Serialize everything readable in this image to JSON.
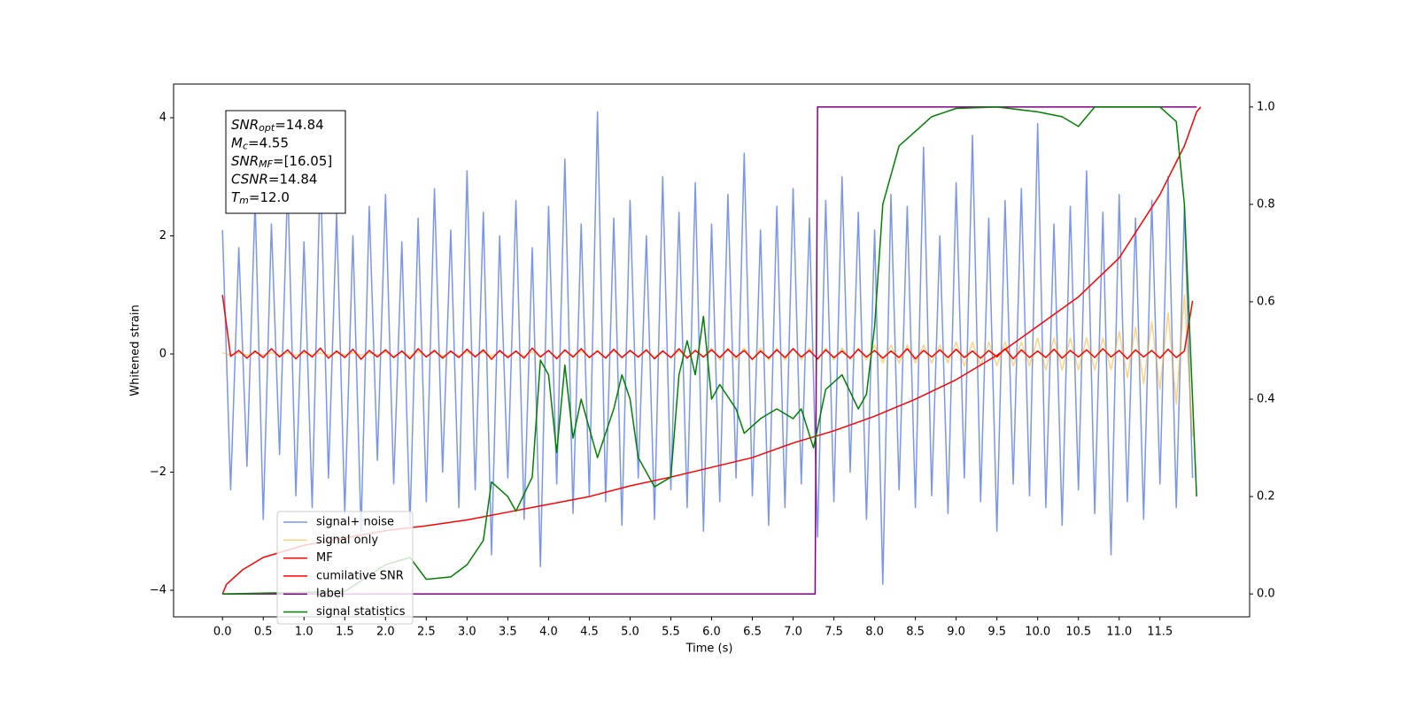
{
  "chart_data": {
    "type": "line",
    "xlabel": "Time (s)",
    "ylabel": "Whitened strain",
    "xlim": [
      -0.6,
      12.6
    ],
    "ylim": [
      -4.45,
      4.57
    ],
    "y2lim": [
      -0.047,
      1.047
    ],
    "xticks": [
      {
        "value": 0,
        "label": "0.0"
      },
      0.5,
      {
        "value": 1,
        "label": "1.0"
      },
      1.5,
      {
        "value": 2,
        "label": "2.0"
      },
      2.5,
      {
        "value": 3,
        "label": "3.0"
      },
      3.5,
      {
        "value": 4,
        "label": "4.0"
      },
      4.5,
      {
        "value": 5,
        "label": "5.0"
      },
      5.5,
      {
        "value": 6,
        "label": "6.0"
      },
      6.5,
      {
        "value": 7,
        "label": "7.0"
      },
      7.5,
      {
        "value": 8,
        "label": "8.0"
      },
      8.5,
      {
        "value": 9,
        "label": "9.0"
      },
      9.5,
      {
        "value": 10,
        "label": "10.0"
      },
      10.5,
      {
        "value": 11,
        "label": "11.0"
      },
      11.5
    ],
    "yticks": [
      {
        "value": -4,
        "label": "−4"
      },
      {
        "value": -2,
        "label": "−2"
      },
      0,
      2,
      4
    ],
    "y2ticks": [
      {
        "value": 0,
        "label": "0.0"
      },
      0.2,
      0.4,
      0.6,
      0.8,
      {
        "value": 1,
        "label": "1.0"
      }
    ],
    "legend_loc": "lower left",
    "annotation_lines": [
      {
        "symbol": "SNR",
        "subscript": "opt",
        "text": "=14.84"
      },
      {
        "symbol": "M",
        "subscript": "c",
        "text": "=4.55"
      },
      {
        "symbol": "SNR",
        "subscript": "MF",
        "text": "=[16.05]"
      },
      {
        "symbol": "CSNR",
        "text": "=14.84"
      },
      {
        "symbol": "T",
        "subscript": "m",
        "text": "=12.0"
      }
    ],
    "x": [
      0,
      0.1,
      0.2,
      0.3,
      0.4,
      0.5,
      0.6,
      0.7,
      0.8,
      0.9,
      1,
      1.1,
      1.2,
      1.3,
      1.4,
      1.5,
      1.6,
      1.7,
      1.8,
      1.9,
      2,
      2.1,
      2.2,
      2.3,
      2.4,
      2.5,
      2.6,
      2.7,
      2.8,
      2.9,
      3,
      3.1,
      3.2,
      3.3,
      3.4,
      3.5,
      3.6,
      3.7,
      3.8,
      3.9,
      4,
      4.1,
      4.2,
      4.3,
      4.4,
      4.5,
      4.6,
      4.7,
      4.8,
      4.9,
      5,
      5.1,
      5.2,
      5.3,
      5.4,
      5.5,
      5.6,
      5.7,
      5.8,
      5.9,
      6,
      6.1,
      6.2,
      6.3,
      6.4,
      6.5,
      6.6,
      6.7,
      6.8,
      6.9,
      7,
      7.1,
      7.2,
      7.3,
      7.4,
      7.5,
      7.6,
      7.7,
      7.8,
      7.9,
      8,
      8.1,
      8.2,
      8.3,
      8.4,
      8.5,
      8.6,
      8.7,
      8.8,
      8.9,
      9,
      9.1,
      9.2,
      9.3,
      9.4,
      9.5,
      9.6,
      9.7,
      9.8,
      9.9,
      10,
      10.1,
      10.2,
      10.3,
      10.4,
      10.5,
      10.6,
      10.7,
      10.8,
      10.9,
      11,
      11.1,
      11.2,
      11.3,
      11.4,
      11.5,
      11.6,
      11.7,
      11.8,
      11.9
    ],
    "series": [
      {
        "name": "signal+ noise",
        "color": "#4169e1",
        "alpha": 0.7,
        "values": [
          2.1,
          -2.3,
          1.8,
          -1.9,
          2.6,
          -2.8,
          2.2,
          -1.7,
          2.9,
          -2.4,
          1.9,
          -2.6,
          3.2,
          -2.1,
          2.4,
          -2.7,
          2.0,
          -3.0,
          2.5,
          -1.8,
          2.7,
          -2.2,
          1.9,
          -2.9,
          2.3,
          -2.5,
          2.8,
          -2.0,
          2.1,
          -2.6,
          3.1,
          -2.3,
          2.4,
          -3.4,
          2.0,
          -2.1,
          2.6,
          -2.8,
          1.8,
          -3.6,
          2.5,
          -2.2,
          3.3,
          -2.7,
          2.2,
          -2.4,
          4.1,
          -2.5,
          2.3,
          -2.9,
          2.6,
          -2.1,
          2.0,
          -2.8,
          3.0,
          -2.3,
          2.4,
          -2.6,
          2.9,
          -3.0,
          2.2,
          -2.5,
          2.7,
          -2.1,
          3.4,
          -2.4,
          2.1,
          -2.9,
          2.5,
          -2.6,
          2.8,
          -2.2,
          2.3,
          -3.1,
          2.6,
          -2.5,
          3.0,
          -2.0,
          2.4,
          -2.8,
          2.1,
          -3.9,
          2.7,
          -2.3,
          2.5,
          -2.6,
          3.5,
          -2.4,
          2.0,
          -2.7,
          2.9,
          -2.1,
          3.7,
          -2.5,
          2.3,
          -3.0,
          2.6,
          -2.2,
          2.8,
          -2.4,
          3.9,
          -2.6,
          2.2,
          -2.9,
          2.5,
          -2.3,
          3.1,
          -2.7,
          2.4,
          -3.4,
          2.7,
          -2.5,
          2.3,
          -2.8,
          2.6,
          -2.2,
          3.0,
          -2.6,
          2.5,
          -2.1
        ]
      },
      {
        "name": "signal only",
        "color": "#ffa500",
        "alpha": 0.5,
        "values": [
          0.02,
          -0.02,
          0.02,
          -0.02,
          0.02,
          -0.02,
          0.02,
          -0.02,
          0.02,
          -0.02,
          0.02,
          -0.02,
          0.02,
          -0.02,
          0.02,
          -0.02,
          0.02,
          -0.02,
          0.02,
          -0.02,
          0.04,
          -0.04,
          0.04,
          -0.04,
          0.04,
          -0.04,
          0.04,
          -0.04,
          0.04,
          -0.04,
          0.04,
          -0.04,
          0.04,
          -0.04,
          0.04,
          -0.04,
          0.04,
          -0.04,
          0.04,
          -0.04,
          0.06,
          -0.06,
          0.06,
          -0.06,
          0.06,
          -0.06,
          0.06,
          -0.06,
          0.06,
          -0.06,
          0.06,
          -0.06,
          0.06,
          -0.06,
          0.06,
          -0.06,
          0.06,
          -0.06,
          0.06,
          -0.06,
          0.1,
          -0.1,
          0.1,
          -0.1,
          0.1,
          -0.1,
          0.1,
          -0.1,
          0.1,
          -0.1,
          0.1,
          -0.1,
          0.1,
          -0.1,
          0.1,
          -0.1,
          0.1,
          -0.1,
          0.1,
          -0.1,
          0.15,
          -0.15,
          0.15,
          -0.15,
          0.15,
          -0.15,
          0.15,
          -0.15,
          0.15,
          -0.15,
          0.2,
          -0.2,
          0.2,
          -0.2,
          0.2,
          -0.2,
          0.2,
          -0.2,
          0.2,
          -0.2,
          0.27,
          -0.27,
          0.27,
          -0.27,
          0.27,
          -0.27,
          0.27,
          -0.27,
          0.27,
          -0.27,
          0.38,
          -0.4,
          0.45,
          -0.5,
          0.55,
          -0.6,
          0.7,
          -0.85,
          1.0,
          -1.4
        ]
      },
      {
        "name": "MF",
        "color": "#ff0000",
        "values": [
          1.0,
          -0.04,
          0.06,
          -0.07,
          0.05,
          -0.06,
          0.09,
          -0.05,
          0.07,
          -0.08,
          0.06,
          -0.05,
          0.1,
          -0.07,
          0.05,
          -0.06,
          0.08,
          -0.09,
          0.06,
          -0.05,
          0.07,
          -0.06,
          0.05,
          -0.08,
          0.09,
          -0.05,
          0.06,
          -0.07,
          0.05,
          -0.06,
          0.08,
          -0.05,
          0.07,
          -0.09,
          0.06,
          -0.06,
          0.05,
          -0.07,
          0.1,
          -0.05,
          0.06,
          -0.08,
          0.07,
          -0.05,
          0.09,
          -0.06,
          0.05,
          -0.07,
          0.08,
          -0.06,
          0.06,
          -0.05,
          0.07,
          -0.08,
          0.05,
          -0.06,
          0.09,
          -0.07,
          0.06,
          -0.05,
          0.07,
          -0.06,
          0.08,
          -0.05,
          0.06,
          -0.09,
          0.05,
          -0.07,
          0.07,
          -0.06,
          0.09,
          -0.05,
          0.06,
          -0.08,
          0.07,
          -0.06,
          0.05,
          -0.07,
          0.08,
          -0.05,
          0.06,
          -0.07,
          0.05,
          -0.06,
          0.09,
          -0.08,
          0.06,
          -0.05,
          0.07,
          -0.06,
          0.08,
          -0.06,
          0.05,
          -0.07,
          0.06,
          -0.05,
          0.09,
          -0.08,
          0.07,
          -0.06,
          0.05,
          -0.06,
          0.08,
          -0.07,
          0.06,
          -0.05,
          0.07,
          -0.06,
          0.09,
          -0.05,
          0.06,
          -0.08,
          0.07,
          -0.05,
          0.06,
          -0.07,
          0.08,
          -0.06,
          0.05,
          0.9
        ]
      },
      {
        "name": "cumilative SNR",
        "color": "#ff0000",
        "axis": "y2",
        "x": [
          0,
          0.05,
          0.25,
          0.5,
          1,
          1.5,
          2,
          2.5,
          3,
          3.5,
          4,
          4.5,
          5,
          5.5,
          6,
          6.5,
          7,
          7.5,
          8,
          8.5,
          9,
          9.5,
          10,
          10.5,
          11,
          11.5,
          11.8,
          11.95,
          12
        ],
        "values": [
          0,
          0.02,
          0.05,
          0.075,
          0.1,
          0.115,
          0.13,
          0.14,
          0.152,
          0.168,
          0.184,
          0.2,
          0.222,
          0.24,
          0.26,
          0.28,
          0.31,
          0.335,
          0.365,
          0.4,
          0.44,
          0.49,
          0.55,
          0.61,
          0.69,
          0.82,
          0.92,
          0.99,
          1.0
        ]
      },
      {
        "name": "label",
        "color": "#800080",
        "axis": "y2",
        "x": [
          0,
          7.27,
          7.3,
          11.95
        ],
        "values": [
          0,
          0,
          1,
          1
        ]
      },
      {
        "name": "signal statistics",
        "color": "#008000",
        "axis": "y2",
        "x": [
          0,
          1.5,
          2.0,
          2.3,
          2.5,
          2.8,
          3.0,
          3.2,
          3.3,
          3.5,
          3.6,
          3.8,
          3.9,
          4.0,
          4.1,
          4.2,
          4.3,
          4.4,
          4.6,
          4.8,
          4.9,
          5.0,
          5.1,
          5.3,
          5.5,
          5.6,
          5.7,
          5.8,
          5.9,
          6.0,
          6.1,
          6.3,
          6.4,
          6.6,
          6.8,
          7.0,
          7.1,
          7.25,
          7.4,
          7.6,
          7.8,
          7.9,
          8.0,
          8.1,
          8.3,
          8.5,
          8.7,
          9.0,
          9.5,
          10.0,
          10.3,
          10.5,
          10.7,
          11.0,
          11.5,
          11.7,
          11.8,
          11.9,
          11.95
        ],
        "values": [
          0,
          0.005,
          0.06,
          0.075,
          0.03,
          0.035,
          0.06,
          0.11,
          0.23,
          0.2,
          0.17,
          0.24,
          0.48,
          0.45,
          0.29,
          0.47,
          0.32,
          0.4,
          0.28,
          0.38,
          0.45,
          0.4,
          0.28,
          0.22,
          0.24,
          0.45,
          0.52,
          0.45,
          0.57,
          0.4,
          0.43,
          0.38,
          0.33,
          0.36,
          0.38,
          0.36,
          0.38,
          0.3,
          0.42,
          0.45,
          0.38,
          0.41,
          0.55,
          0.8,
          0.92,
          0.95,
          0.98,
          0.997,
          1.0,
          0.99,
          0.98,
          0.96,
          1.0,
          1.0,
          1.0,
          0.97,
          0.8,
          0.4,
          0.2
        ]
      }
    ]
  }
}
